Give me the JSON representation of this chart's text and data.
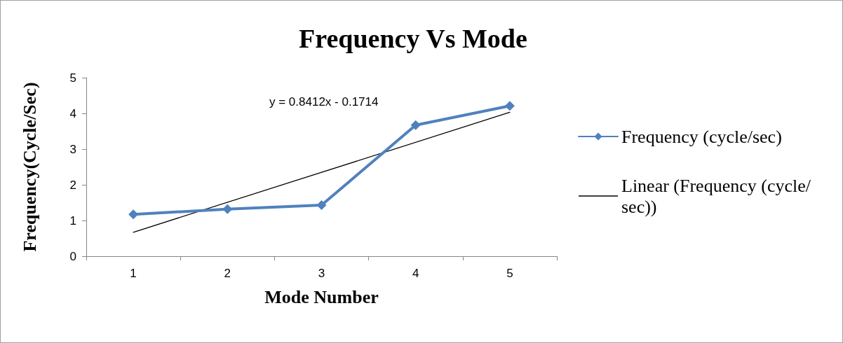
{
  "chart_data": {
    "type": "line",
    "title": "Frequency Vs Mode",
    "xlabel": "Mode Number",
    "ylabel": "Frequency(Cycle/Sec)",
    "categories": [
      "1",
      "2",
      "3",
      "4",
      "5"
    ],
    "series": [
      {
        "name": "Frequency (cycle/sec)",
        "color": "#4f81bd",
        "values": [
          1.17,
          1.32,
          1.43,
          3.67,
          4.21
        ]
      },
      {
        "name": "Linear (Frequency (cycle/sec))",
        "type": "line",
        "color": "#000000",
        "x": [
          "1",
          "5"
        ],
        "values": [
          0.67,
          4.03
        ],
        "marker": "none"
      }
    ],
    "annotations": [
      "y = 0.8412x - 0.1714"
    ],
    "ylim": [
      0,
      5
    ],
    "yticks": [
      0,
      1,
      2,
      3,
      4,
      5
    ],
    "grid": false,
    "legend": "right",
    "marker": "diamond",
    "line_style": "solid"
  }
}
